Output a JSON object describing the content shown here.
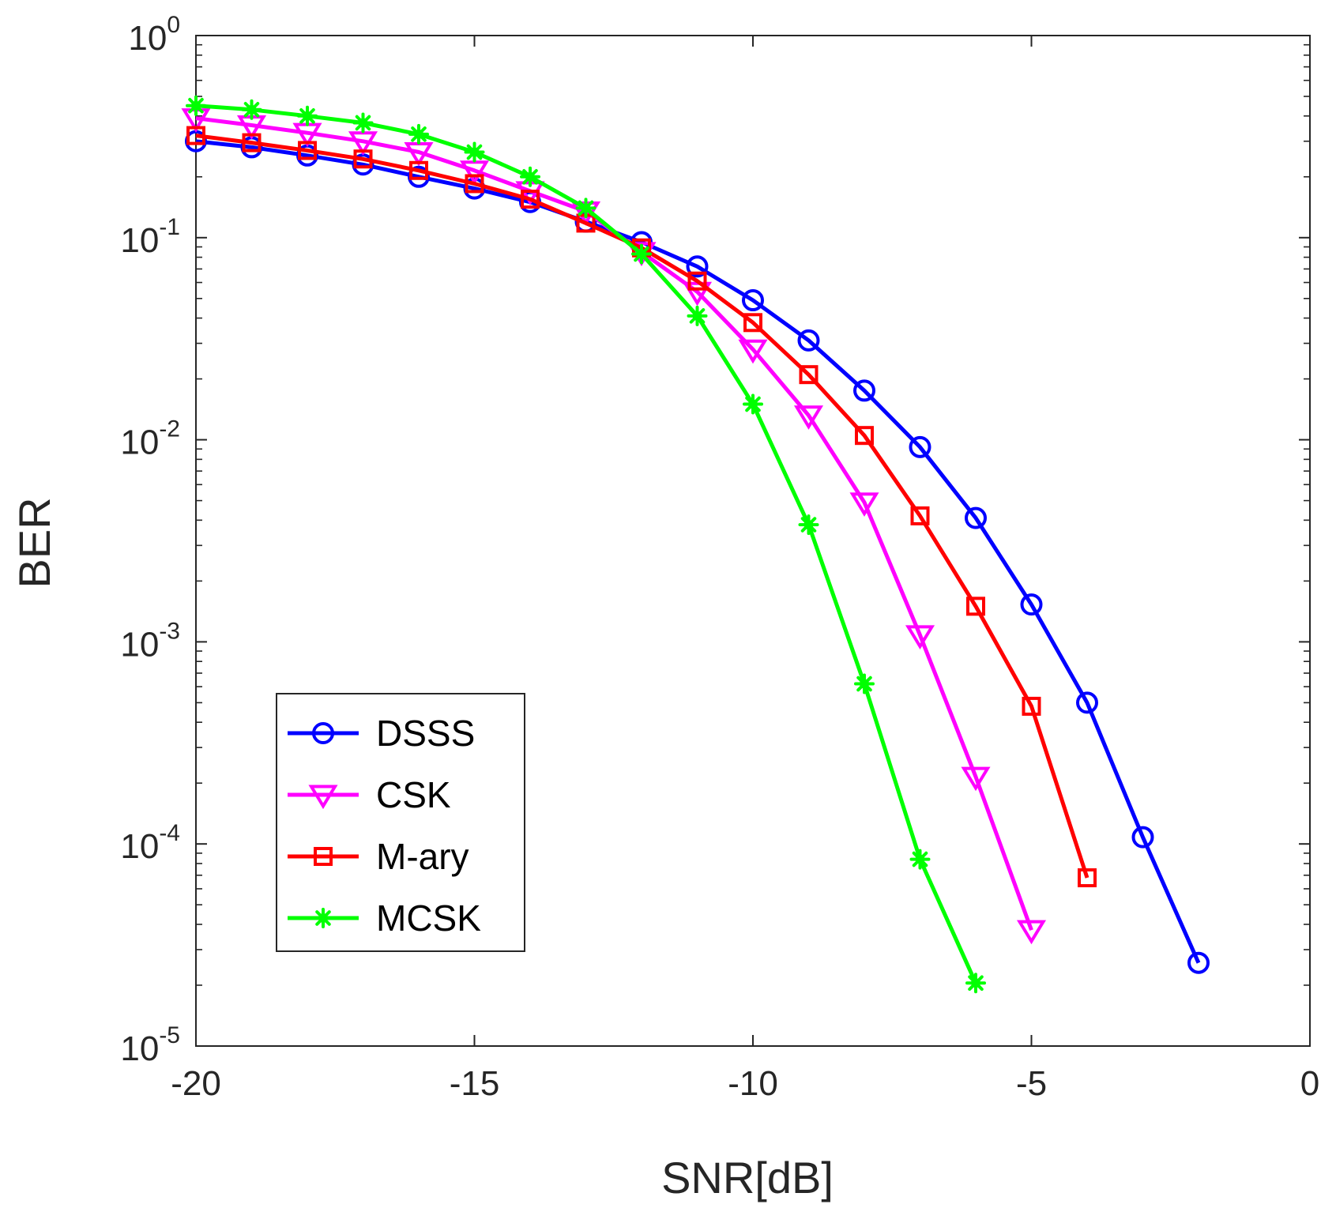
{
  "chart_data": {
    "type": "line",
    "xlabel": "SNR[dB]",
    "ylabel": "BER",
    "x_scale": "linear",
    "y_scale": "log",
    "xlim": [
      -20,
      0
    ],
    "ylim": [
      1e-05,
      1
    ],
    "x_ticks": [
      -20,
      -15,
      -10,
      -5,
      0
    ],
    "x_tick_labels": [
      "-20",
      "-15",
      "-10",
      "-5",
      "0"
    ],
    "y_ticks": [
      {
        "base": "10",
        "exp": "-5",
        "value": 1e-05
      },
      {
        "base": "10",
        "exp": "-4",
        "value": 0.0001
      },
      {
        "base": "10",
        "exp": "-3",
        "value": 0.001
      },
      {
        "base": "10",
        "exp": "-2",
        "value": 0.01
      },
      {
        "base": "10",
        "exp": "-1",
        "value": 0.1
      },
      {
        "base": "10",
        "exp": "0",
        "value": 1
      }
    ],
    "grid": false,
    "legend_position": "bottom-left",
    "series": [
      {
        "name": "DSSS",
        "color": "#0000ff",
        "marker": "circle",
        "x": [
          -20,
          -19,
          -18,
          -17,
          -16,
          -15,
          -14,
          -13,
          -12,
          -11,
          -10,
          -9,
          -8,
          -7,
          -6,
          -5,
          -4,
          -3,
          -2
        ],
        "y": [
          0.3,
          0.28,
          0.255,
          0.23,
          0.2,
          0.175,
          0.15,
          0.12,
          0.095,
          0.072,
          0.049,
          0.031,
          0.0175,
          0.0092,
          0.0041,
          0.00153,
          0.0005,
          0.000108,
          2.58e-05
        ]
      },
      {
        "name": "CSK",
        "color": "#ff00ff",
        "marker": "triangle-down",
        "x": [
          -20,
          -19,
          -18,
          -17,
          -16,
          -15,
          -14,
          -13,
          -12,
          -11,
          -10,
          -9,
          -8,
          -7,
          -6,
          -5
        ],
        "y": [
          0.39,
          0.36,
          0.33,
          0.3,
          0.265,
          0.215,
          0.17,
          0.135,
          0.085,
          0.054,
          0.028,
          0.0132,
          0.0049,
          0.00108,
          0.000215,
          3.75e-05
        ]
      },
      {
        "name": "M-ary",
        "color": "#ff0000",
        "marker": "square",
        "x": [
          -20,
          -19,
          -18,
          -17,
          -16,
          -15,
          -14,
          -13,
          -12,
          -11,
          -10,
          -9,
          -8,
          -7,
          -6,
          -5,
          -4
        ],
        "y": [
          0.32,
          0.295,
          0.27,
          0.245,
          0.215,
          0.185,
          0.155,
          0.118,
          0.089,
          0.061,
          0.038,
          0.021,
          0.0105,
          0.0042,
          0.0015,
          0.00048,
          6.8e-05
        ]
      },
      {
        "name": "MCSK",
        "color": "#00ff00",
        "marker": "asterisk",
        "x": [
          -20,
          -19,
          -18,
          -17,
          -16,
          -15,
          -14,
          -13,
          -12,
          -11,
          -10,
          -9,
          -8,
          -7,
          -6
        ],
        "y": [
          0.45,
          0.43,
          0.4,
          0.37,
          0.325,
          0.265,
          0.2,
          0.14,
          0.083,
          0.041,
          0.015,
          0.0038,
          0.00062,
          8.4e-05,
          2.05e-05
        ]
      }
    ]
  }
}
